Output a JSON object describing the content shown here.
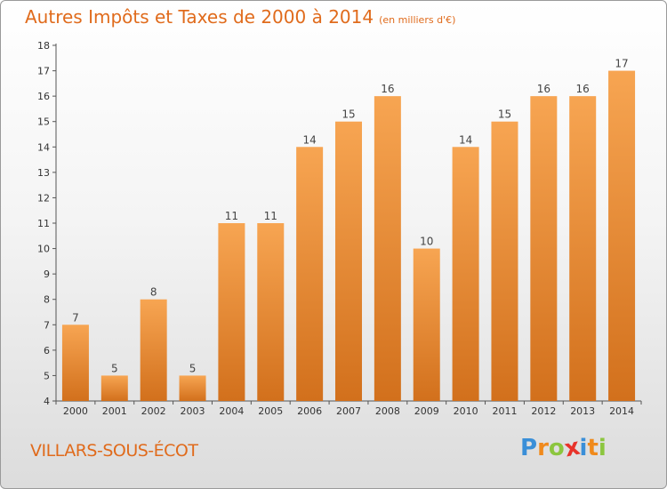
{
  "title": "Autres Impôts et Taxes de 2000 à 2014",
  "subtitle": "(en milliers d'€)",
  "place": "VILLARS-SOUS-ÉCOT",
  "logo": {
    "letters": [
      "P",
      "r",
      "o",
      "x",
      "i",
      "t",
      "i"
    ],
    "colors": [
      "#3a8fd8",
      "#f08a1c",
      "#8cc63f",
      "#e8332a",
      "#3a8fd8",
      "#f08a1c",
      "#8cc63f"
    ]
  },
  "colors": {
    "bar_top": "#f7a552",
    "bar_bottom": "#d2701c",
    "text": "#e06b1c"
  },
  "chart_data": {
    "type": "bar",
    "title": "Autres Impôts et Taxes de 2000 à 2014",
    "subtitle": "(en milliers d'€)",
    "categories": [
      "2000",
      "2001",
      "2002",
      "2003",
      "2004",
      "2005",
      "2006",
      "2007",
      "2008",
      "2009",
      "2010",
      "2011",
      "2012",
      "2013",
      "2014"
    ],
    "values": [
      7,
      5,
      8,
      5,
      11,
      11,
      14,
      15,
      16,
      10,
      14,
      15,
      16,
      16,
      17
    ],
    "ylim": [
      4,
      18
    ],
    "yticks": [
      4,
      5,
      6,
      7,
      8,
      9,
      10,
      11,
      12,
      13,
      14,
      15,
      16,
      17,
      18
    ],
    "grid": false,
    "legend": "none"
  }
}
